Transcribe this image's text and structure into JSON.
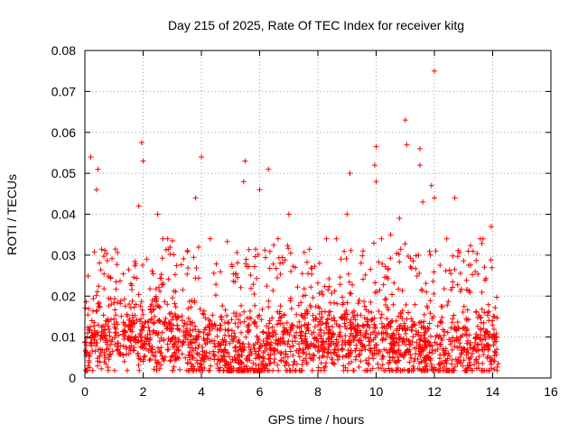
{
  "chart_data": {
    "type": "scatter",
    "title": "Day 215 of 2025, Rate Of TEC Index for receiver kitg",
    "xlabel": "GPS time / hours",
    "ylabel": "ROTI / TECUs",
    "xlim": [
      0,
      16
    ],
    "ylim": [
      0,
      0.08
    ],
    "x_ticks": [
      0,
      2,
      4,
      6,
      8,
      10,
      12,
      14,
      16
    ],
    "y_ticks": [
      0,
      0.01,
      0.02,
      0.03,
      0.04,
      0.05,
      0.06,
      0.07,
      0.08
    ],
    "y_tick_labels": [
      "0",
      "0.01",
      "0.02",
      "0.03",
      "0.04",
      "0.05",
      "0.06",
      "0.07",
      "0.08"
    ],
    "grid": true,
    "marker": "+",
    "marker_color": "#ff0000",
    "data_x_range": [
      0,
      14.2
    ],
    "series": [
      {
        "name": "ROTI",
        "summary": "dense band of points between ~0.002 and ~0.03 TECU/s from 0 to 14.2 h, with sparse peaks",
        "peaks": [
          {
            "x": 0.2,
            "y": 0.054
          },
          {
            "x": 0.45,
            "y": 0.051
          },
          {
            "x": 0.4,
            "y": 0.046
          },
          {
            "x": 1.95,
            "y": 0.0575
          },
          {
            "x": 2.0,
            "y": 0.053
          },
          {
            "x": 1.85,
            "y": 0.042
          },
          {
            "x": 2.5,
            "y": 0.04
          },
          {
            "x": 3.8,
            "y": 0.044
          },
          {
            "x": 4.0,
            "y": 0.054
          },
          {
            "x": 5.5,
            "y": 0.053
          },
          {
            "x": 5.45,
            "y": 0.048
          },
          {
            "x": 6.3,
            "y": 0.051
          },
          {
            "x": 6.0,
            "y": 0.046
          },
          {
            "x": 7.0,
            "y": 0.04
          },
          {
            "x": 9.1,
            "y": 0.05
          },
          {
            "x": 9.0,
            "y": 0.04
          },
          {
            "x": 10.0,
            "y": 0.0565
          },
          {
            "x": 9.95,
            "y": 0.052
          },
          {
            "x": 10.0,
            "y": 0.048
          },
          {
            "x": 10.5,
            "y": 0.035
          },
          {
            "x": 10.8,
            "y": 0.039
          },
          {
            "x": 11.0,
            "y": 0.063
          },
          {
            "x": 11.05,
            "y": 0.057
          },
          {
            "x": 11.5,
            "y": 0.056
          },
          {
            "x": 11.5,
            "y": 0.052
          },
          {
            "x": 11.6,
            "y": 0.043
          },
          {
            "x": 11.9,
            "y": 0.047
          },
          {
            "x": 12.0,
            "y": 0.075
          },
          {
            "x": 12.0,
            "y": 0.044
          },
          {
            "x": 12.7,
            "y": 0.044
          },
          {
            "x": 13.95,
            "y": 0.037
          }
        ]
      }
    ]
  }
}
